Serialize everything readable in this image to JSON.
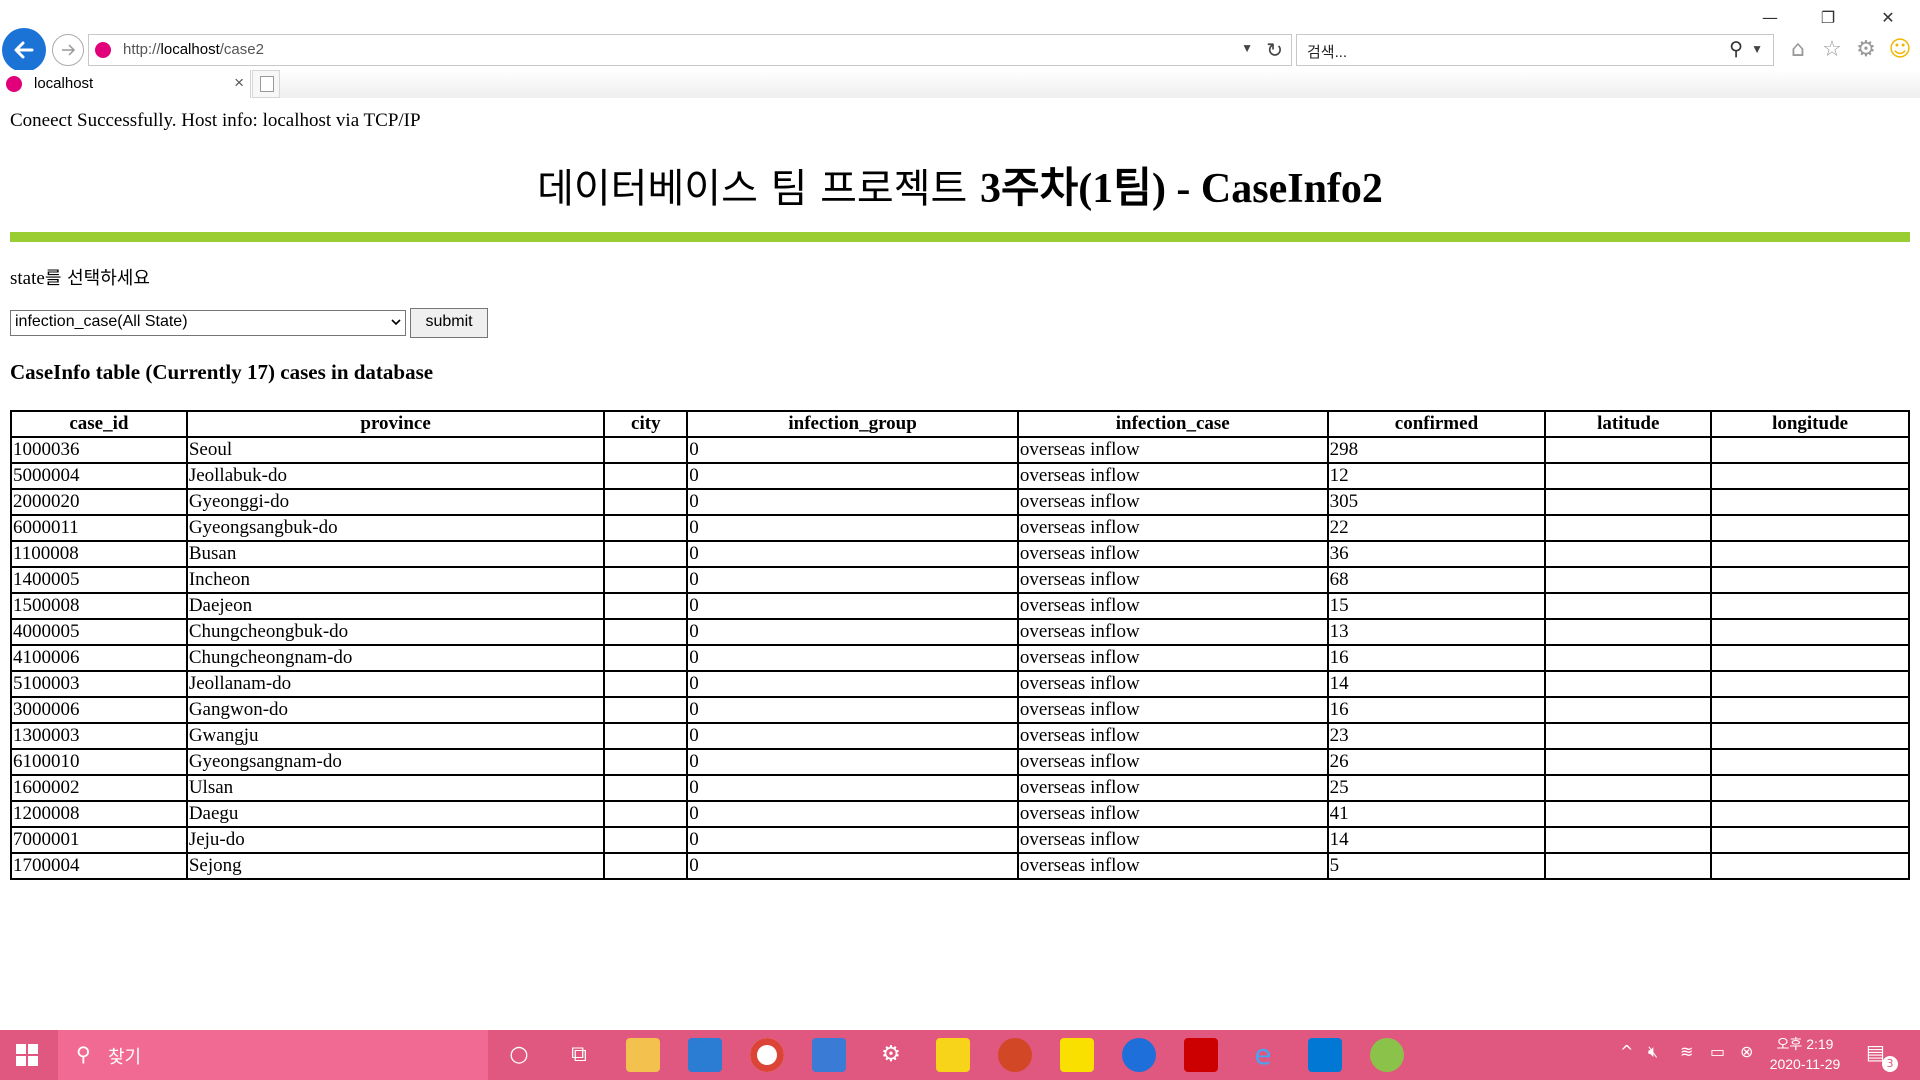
{
  "browser": {
    "url_prefix": "http://",
    "url_host": "localhost",
    "url_path": "/case2",
    "search_placeholder": "검색...",
    "tab_title": "localhost",
    "window_controls": {
      "minimize": "—",
      "restore": "❐",
      "close": "✕"
    }
  },
  "page": {
    "connection_status": "Coneect Successfully. Host info: localhost via TCP/IP",
    "heading_ko": "데이터베이스 팀 프로젝트 ",
    "heading_bold": "3주차(1팀) - CaseInfo2",
    "prompt_en": "state",
    "prompt_ko": "를 선택하세요",
    "select_value": "infection_case(All State)",
    "submit_label": "submit",
    "table_title": "CaseInfo table (Currently 17) cases in database",
    "accent_color": "#9acd32"
  },
  "table": {
    "columns": [
      "case_id",
      "province",
      "city",
      "infection_group",
      "infection_case",
      "confirmed",
      "latitude",
      "longitude"
    ],
    "rows": [
      [
        "1000036",
        "Seoul",
        "",
        "0",
        "overseas inflow",
        "298",
        "",
        ""
      ],
      [
        "5000004",
        "Jeollabuk-do",
        "",
        "0",
        "overseas inflow",
        "12",
        "",
        ""
      ],
      [
        "2000020",
        "Gyeonggi-do",
        "",
        "0",
        "overseas inflow",
        "305",
        "",
        ""
      ],
      [
        "6000011",
        "Gyeongsangbuk-do",
        "",
        "0",
        "overseas inflow",
        "22",
        "",
        ""
      ],
      [
        "1100008",
        "Busan",
        "",
        "0",
        "overseas inflow",
        "36",
        "",
        ""
      ],
      [
        "1400005",
        "Incheon",
        "",
        "0",
        "overseas inflow",
        "68",
        "",
        ""
      ],
      [
        "1500008",
        "Daejeon",
        "",
        "0",
        "overseas inflow",
        "15",
        "",
        ""
      ],
      [
        "4000005",
        "Chungcheongbuk-do",
        "",
        "0",
        "overseas inflow",
        "13",
        "",
        ""
      ],
      [
        "4100006",
        "Chungcheongnam-do",
        "",
        "0",
        "overseas inflow",
        "16",
        "",
        ""
      ],
      [
        "5100003",
        "Jeollanam-do",
        "",
        "0",
        "overseas inflow",
        "14",
        "",
        ""
      ],
      [
        "3000006",
        "Gangwon-do",
        "",
        "0",
        "overseas inflow",
        "16",
        "",
        ""
      ],
      [
        "1300003",
        "Gwangju",
        "",
        "0",
        "overseas inflow",
        "23",
        "",
        ""
      ],
      [
        "6100010",
        "Gyeongsangnam-do",
        "",
        "0",
        "overseas inflow",
        "26",
        "",
        ""
      ],
      [
        "1600002",
        "Ulsan",
        "",
        "0",
        "overseas inflow",
        "25",
        "",
        ""
      ],
      [
        "1200008",
        "Daegu",
        "",
        "0",
        "overseas inflow",
        "41",
        "",
        ""
      ],
      [
        "7000001",
        "Jeju-do",
        "",
        "0",
        "overseas inflow",
        "14",
        "",
        ""
      ],
      [
        "1700004",
        "Sejong",
        "",
        "0",
        "overseas inflow",
        "5",
        "",
        ""
      ]
    ]
  },
  "taskbar": {
    "search_placeholder": "찾기",
    "clock_time": "오후 2:19",
    "clock_date": "2020-11-29",
    "notification_count": "3",
    "color": "#e0577f"
  }
}
